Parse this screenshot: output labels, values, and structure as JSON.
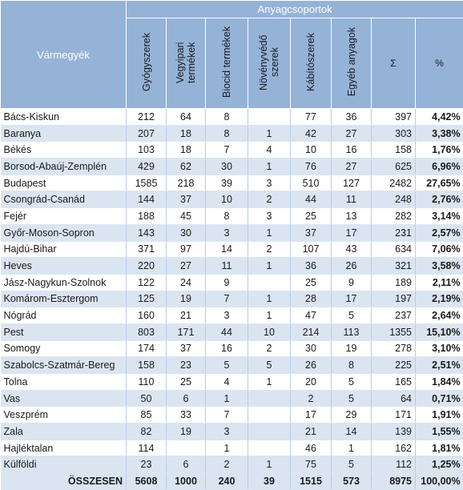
{
  "table": {
    "row_header": "Vármegyék",
    "group_header": "Anyagcsoportok",
    "columns": [
      "Gyógyszerek",
      "Vegyipari termékek",
      "Biocid termékek",
      "Növényvédő szerek",
      "Kábítószerek",
      "Egyéb anyagok",
      "Σ",
      "%"
    ],
    "rows": [
      [
        "Bács-Kiskun",
        212,
        64,
        8,
        null,
        77,
        36,
        397,
        "4,42%"
      ],
      [
        "Baranya",
        207,
        18,
        8,
        1,
        42,
        27,
        303,
        "3,38%"
      ],
      [
        "Békés",
        103,
        18,
        7,
        4,
        10,
        16,
        158,
        "1,76%"
      ],
      [
        "Borsod-Abaúj-Zemplén",
        429,
        62,
        30,
        1,
        76,
        27,
        625,
        "6,96%"
      ],
      [
        "Budapest",
        1585,
        218,
        39,
        3,
        510,
        127,
        2482,
        "27,65%"
      ],
      [
        "Csongrád-Csanád",
        144,
        37,
        10,
        2,
        44,
        11,
        248,
        "2,76%"
      ],
      [
        "Fejér",
        188,
        45,
        8,
        3,
        25,
        13,
        282,
        "3,14%"
      ],
      [
        "Győr-Moson-Sopron",
        143,
        30,
        3,
        1,
        37,
        17,
        231,
        "2,57%"
      ],
      [
        "Hajdú-Bihar",
        371,
        97,
        14,
        2,
        107,
        43,
        634,
        "7,06%"
      ],
      [
        "Heves",
        220,
        27,
        11,
        1,
        36,
        26,
        321,
        "3,58%"
      ],
      [
        "Jász-Nagykun-Szolnok",
        122,
        24,
        9,
        null,
        25,
        9,
        189,
        "2,11%"
      ],
      [
        "Komárom-Esztergom",
        125,
        19,
        7,
        1,
        28,
        17,
        197,
        "2,19%"
      ],
      [
        "Nógrád",
        160,
        21,
        3,
        1,
        47,
        5,
        237,
        "2,64%"
      ],
      [
        "Pest",
        803,
        171,
        44,
        10,
        214,
        113,
        1355,
        "15,10%"
      ],
      [
        "Somogy",
        174,
        37,
        16,
        2,
        30,
        19,
        278,
        "3,10%"
      ],
      [
        "Szabolcs-Szatmár-Bereg",
        158,
        23,
        5,
        5,
        26,
        8,
        225,
        "2,51%"
      ],
      [
        "Tolna",
        110,
        25,
        4,
        1,
        20,
        5,
        165,
        "1,84%"
      ],
      [
        "Vas",
        50,
        6,
        1,
        null,
        2,
        5,
        64,
        "0,71%"
      ],
      [
        "Veszprém",
        85,
        33,
        7,
        null,
        17,
        29,
        171,
        "1,91%"
      ],
      [
        "Zala",
        82,
        19,
        3,
        null,
        21,
        14,
        139,
        "1,55%"
      ],
      [
        "Hajléktalan",
        114,
        null,
        1,
        null,
        46,
        1,
        162,
        "1,81%"
      ],
      [
        "Külföldi",
        23,
        6,
        2,
        1,
        75,
        5,
        112,
        "1,25%"
      ]
    ],
    "total": [
      "ÖSSZESEN",
      5608,
      1000,
      240,
      39,
      1515,
      573,
      8975,
      "100,00%"
    ]
  }
}
